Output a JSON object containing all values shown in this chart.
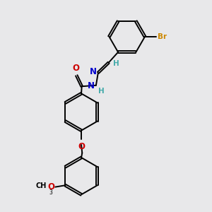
{
  "background_color": "#e8e8ea",
  "bond_color": "#000000",
  "atom_colors": {
    "Br": "#cc8800",
    "N": "#0000cc",
    "O": "#cc0000",
    "H": "#44aaaa",
    "C": "#000000"
  },
  "figsize": [
    3.0,
    3.0
  ],
  "dpi": 100
}
